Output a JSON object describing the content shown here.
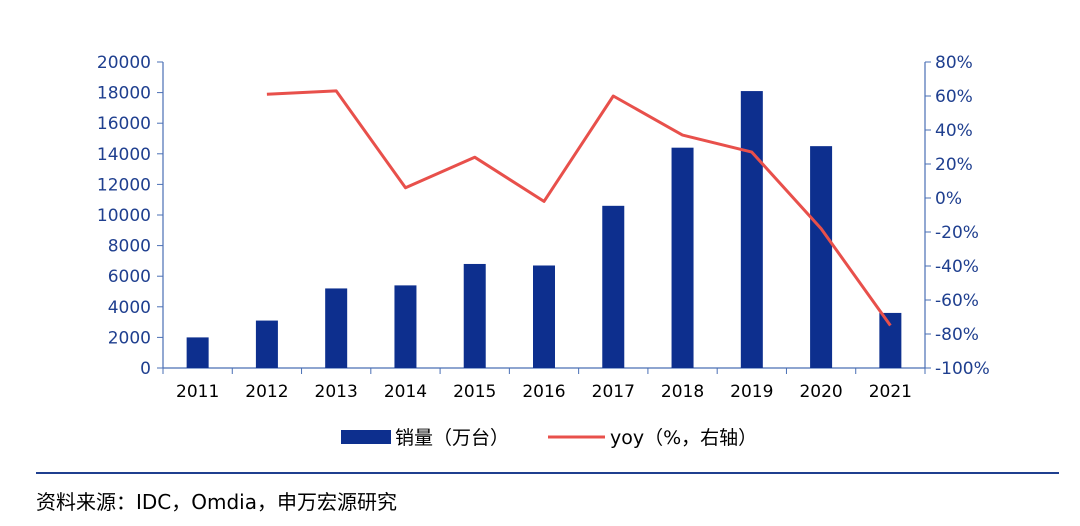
{
  "chart_data": {
    "type": "bar",
    "categories": [
      "2011",
      "2012",
      "2013",
      "2014",
      "2015",
      "2016",
      "2017",
      "2018",
      "2019",
      "2020",
      "2021"
    ],
    "series": [
      {
        "name": "销量（万台）",
        "type": "bar",
        "axis": "left",
        "color": "#0d2f8e",
        "values": [
          2000,
          3100,
          5200,
          5400,
          6800,
          6700,
          10600,
          14400,
          18100,
          14500,
          3600
        ]
      },
      {
        "name": "yoy（%，右轴）",
        "type": "line",
        "axis": "right",
        "color": "#e8504b",
        "values": [
          null,
          61,
          63,
          6,
          24,
          -2,
          60,
          37,
          27,
          -18,
          -75
        ]
      }
    ],
    "y_left": {
      "min": 0,
      "max": 20000,
      "step": 2000,
      "ticks": [
        "0",
        "2000",
        "4000",
        "6000",
        "8000",
        "10000",
        "12000",
        "14000",
        "16000",
        "18000",
        "20000"
      ]
    },
    "y_right": {
      "min": -100,
      "max": 80,
      "step": 20,
      "ticks": [
        "-100%",
        "-80%",
        "-60%",
        "-40%",
        "-20%",
        "0%",
        "20%",
        "40%",
        "60%",
        "80%"
      ]
    },
    "legend_position": "bottom",
    "grid": false
  },
  "source_text": "资料来源：IDC，Omdia，申万宏源研究"
}
